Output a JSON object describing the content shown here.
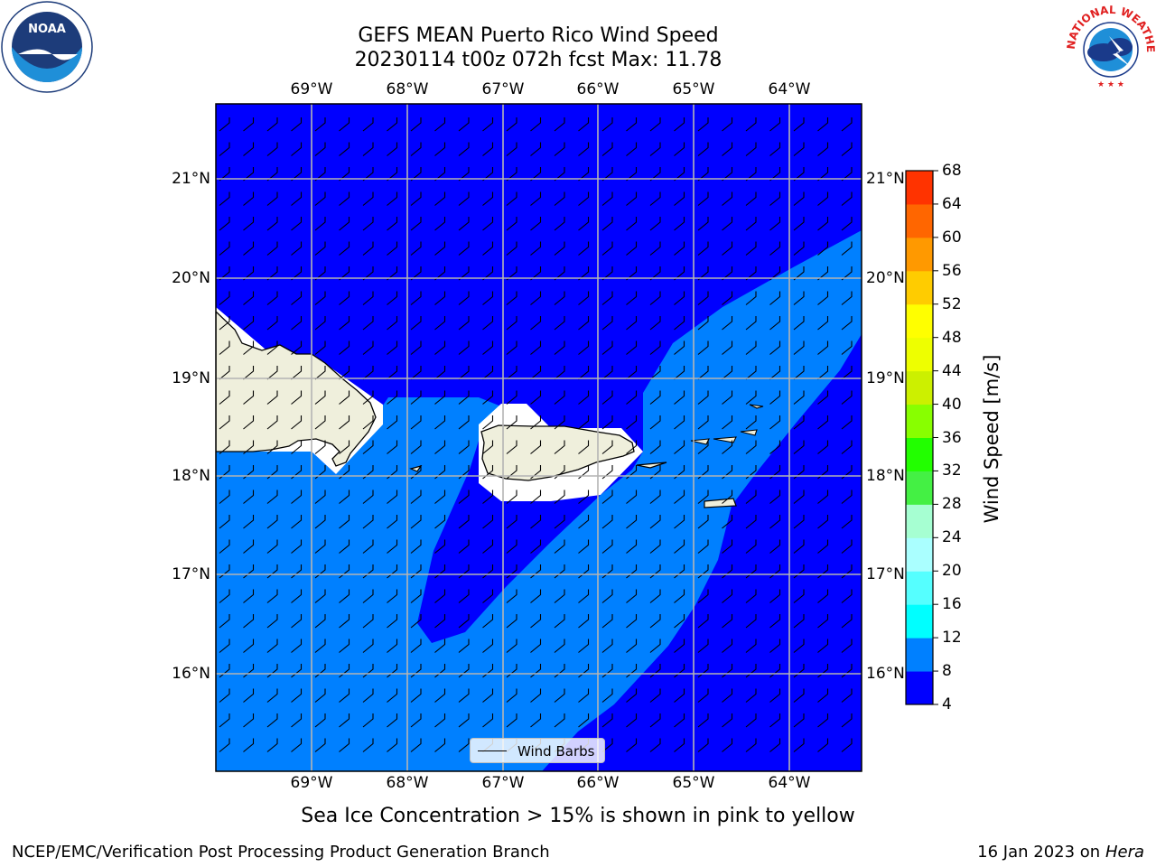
{
  "title": {
    "line1": "GEFS MEAN Puerto Rico Wind Speed",
    "line2": "20230114 t00z 072h fcst   Max: 11.78"
  },
  "map": {
    "lon_labels": [
      "69°W",
      "68°W",
      "67°W",
      "66°W",
      "65°W",
      "64°W"
    ],
    "lat_labels": [
      "21°N",
      "20°N",
      "19°N",
      "18°N",
      "17°N",
      "16°N"
    ],
    "fill_colors": {
      "low": "#0000ff",
      "mid": "#0080ff",
      "land": "#efefdc"
    }
  },
  "legend": {
    "label": "Wind Barbs"
  },
  "colorbar": {
    "title": "Wind Speed [m/s]",
    "ticks": [
      "4",
      "8",
      "12",
      "16",
      "20",
      "24",
      "28",
      "32",
      "36",
      "40",
      "44",
      "48",
      "52",
      "56",
      "60",
      "64",
      "68"
    ],
    "colors": [
      "#0000ff",
      "#0080ff",
      "#00ffff",
      "#55ffff",
      "#aaffff",
      "#a6ffd2",
      "#44f044",
      "#22ff00",
      "#88ff00",
      "#ccf000",
      "#eeff00",
      "#ffff00",
      "#ffcc00",
      "#ff9900",
      "#ff6600",
      "#ff3300"
    ]
  },
  "footer": {
    "note": "Sea Ice Concentration > 15% is shown in pink to yellow",
    "credit": "NCEP/EMC/Verification Post Processing Product Generation Branch",
    "date_prefix": "16 Jan 2023 on ",
    "date_host": "Hera"
  },
  "logos": {
    "left": "NOAA",
    "right": "NATIONAL WEATHER SERVICE"
  }
}
